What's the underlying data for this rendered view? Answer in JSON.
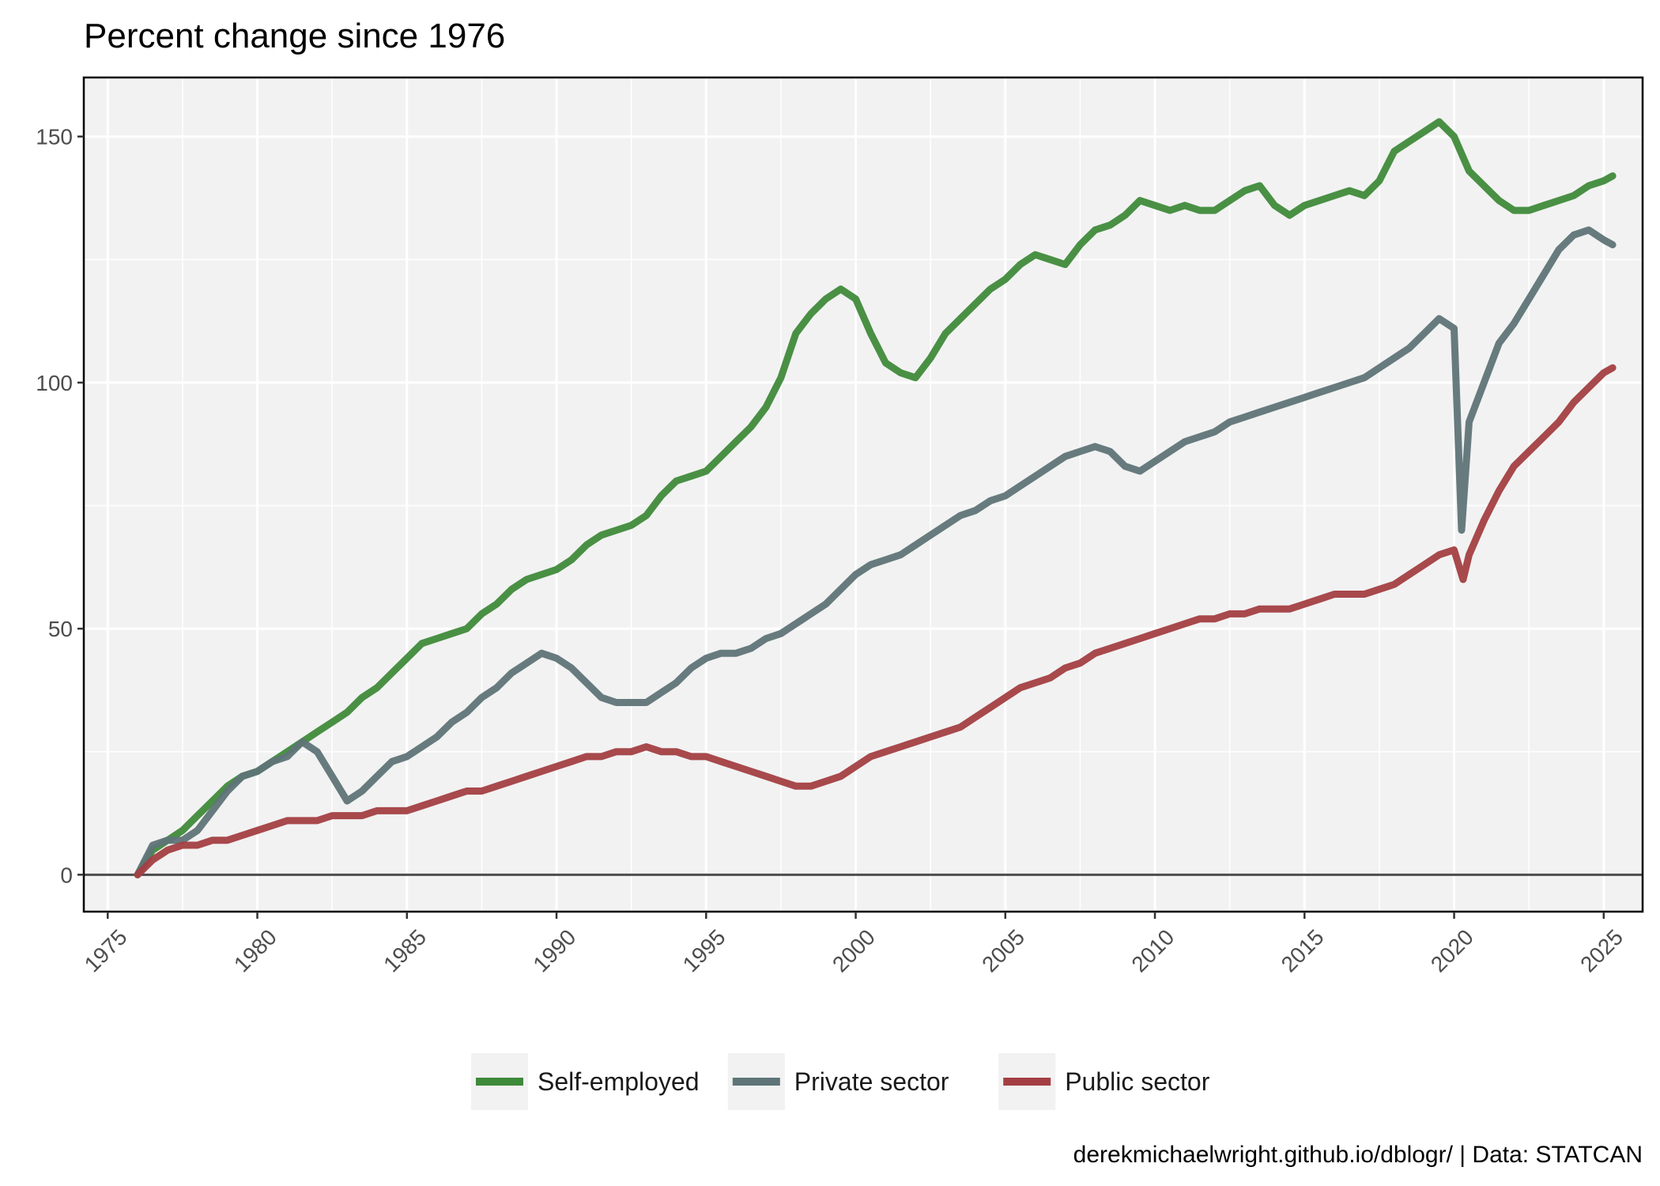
{
  "chart_data": {
    "type": "line",
    "title": "Percent change since 1976",
    "caption": "derekmichaelwright.github.io/dblogr/ | Data: STATCAN",
    "xlabel": "",
    "ylabel": "",
    "xlim": [
      1974.2,
      2026.3
    ],
    "ylim": [
      -7.5,
      162
    ],
    "x_ticks": [
      1975,
      1980,
      1985,
      1990,
      1995,
      2000,
      2005,
      2010,
      2015,
      2020,
      2025
    ],
    "y_ticks": [
      0,
      50,
      100,
      150
    ],
    "zero_line": 0,
    "grid": true,
    "legend_position": "bottom",
    "series": [
      {
        "name": "Self-employed",
        "color": "#3f8a3a",
        "points": [
          [
            1976.0,
            0
          ],
          [
            1976.5,
            5
          ],
          [
            1977.0,
            7
          ],
          [
            1977.5,
            9
          ],
          [
            1978.0,
            12
          ],
          [
            1978.5,
            15
          ],
          [
            1979.0,
            18
          ],
          [
            1979.5,
            20
          ],
          [
            1980.0,
            21
          ],
          [
            1980.5,
            23
          ],
          [
            1981.0,
            25
          ],
          [
            1981.5,
            27
          ],
          [
            1982.0,
            29
          ],
          [
            1982.5,
            31
          ],
          [
            1983.0,
            33
          ],
          [
            1983.5,
            36
          ],
          [
            1984.0,
            38
          ],
          [
            1984.5,
            41
          ],
          [
            1985.0,
            44
          ],
          [
            1985.5,
            47
          ],
          [
            1986.0,
            48
          ],
          [
            1986.5,
            49
          ],
          [
            1987.0,
            50
          ],
          [
            1987.5,
            53
          ],
          [
            1988.0,
            55
          ],
          [
            1988.5,
            58
          ],
          [
            1989.0,
            60
          ],
          [
            1989.5,
            61
          ],
          [
            1990.0,
            62
          ],
          [
            1990.5,
            64
          ],
          [
            1991.0,
            67
          ],
          [
            1991.5,
            69
          ],
          [
            1992.0,
            70
          ],
          [
            1992.5,
            71
          ],
          [
            1993.0,
            73
          ],
          [
            1993.5,
            77
          ],
          [
            1994.0,
            80
          ],
          [
            1994.5,
            81
          ],
          [
            1995.0,
            82
          ],
          [
            1995.5,
            85
          ],
          [
            1996.0,
            88
          ],
          [
            1996.5,
            91
          ],
          [
            1997.0,
            95
          ],
          [
            1997.5,
            101
          ],
          [
            1998.0,
            110
          ],
          [
            1998.5,
            114
          ],
          [
            1999.0,
            117
          ],
          [
            1999.5,
            119
          ],
          [
            2000.0,
            117
          ],
          [
            2000.5,
            110
          ],
          [
            2001.0,
            104
          ],
          [
            2001.5,
            102
          ],
          [
            2002.0,
            101
          ],
          [
            2002.5,
            105
          ],
          [
            2003.0,
            110
          ],
          [
            2003.5,
            113
          ],
          [
            2004.0,
            116
          ],
          [
            2004.5,
            119
          ],
          [
            2005.0,
            121
          ],
          [
            2005.5,
            124
          ],
          [
            2006.0,
            126
          ],
          [
            2006.5,
            125
          ],
          [
            2007.0,
            124
          ],
          [
            2007.5,
            128
          ],
          [
            2008.0,
            131
          ],
          [
            2008.5,
            132
          ],
          [
            2009.0,
            134
          ],
          [
            2009.5,
            137
          ],
          [
            2010.0,
            136
          ],
          [
            2010.5,
            135
          ],
          [
            2011.0,
            136
          ],
          [
            2011.5,
            135
          ],
          [
            2012.0,
            135
          ],
          [
            2012.5,
            137
          ],
          [
            2013.0,
            139
          ],
          [
            2013.5,
            140
          ],
          [
            2014.0,
            136
          ],
          [
            2014.5,
            134
          ],
          [
            2015.0,
            136
          ],
          [
            2015.5,
            137
          ],
          [
            2016.0,
            138
          ],
          [
            2016.5,
            139
          ],
          [
            2017.0,
            138
          ],
          [
            2017.5,
            141
          ],
          [
            2018.0,
            147
          ],
          [
            2018.5,
            149
          ],
          [
            2019.0,
            151
          ],
          [
            2019.5,
            153
          ],
          [
            2020.0,
            150
          ],
          [
            2020.5,
            143
          ],
          [
            2021.0,
            140
          ],
          [
            2021.5,
            137
          ],
          [
            2022.0,
            135
          ],
          [
            2022.5,
            135
          ],
          [
            2023.0,
            136
          ],
          [
            2023.5,
            137
          ],
          [
            2024.0,
            138
          ],
          [
            2024.5,
            140
          ],
          [
            2025.0,
            141
          ],
          [
            2025.3,
            142
          ]
        ]
      },
      {
        "name": "Private sector",
        "color": "#5f7477",
        "points": [
          [
            1976.0,
            0
          ],
          [
            1976.5,
            6
          ],
          [
            1977.0,
            7
          ],
          [
            1977.5,
            7
          ],
          [
            1978.0,
            9
          ],
          [
            1978.5,
            13
          ],
          [
            1979.0,
            17
          ],
          [
            1979.5,
            20
          ],
          [
            1980.0,
            21
          ],
          [
            1980.5,
            23
          ],
          [
            1981.0,
            24
          ],
          [
            1981.5,
            27
          ],
          [
            1982.0,
            25
          ],
          [
            1982.5,
            20
          ],
          [
            1983.0,
            15
          ],
          [
            1983.5,
            17
          ],
          [
            1984.0,
            20
          ],
          [
            1984.5,
            23
          ],
          [
            1985.0,
            24
          ],
          [
            1985.5,
            26
          ],
          [
            1986.0,
            28
          ],
          [
            1986.5,
            31
          ],
          [
            1987.0,
            33
          ],
          [
            1987.5,
            36
          ],
          [
            1988.0,
            38
          ],
          [
            1988.5,
            41
          ],
          [
            1989.0,
            43
          ],
          [
            1989.5,
            45
          ],
          [
            1990.0,
            44
          ],
          [
            1990.5,
            42
          ],
          [
            1991.0,
            39
          ],
          [
            1991.5,
            36
          ],
          [
            1992.0,
            35
          ],
          [
            1992.5,
            35
          ],
          [
            1993.0,
            35
          ],
          [
            1993.5,
            37
          ],
          [
            1994.0,
            39
          ],
          [
            1994.5,
            42
          ],
          [
            1995.0,
            44
          ],
          [
            1995.5,
            45
          ],
          [
            1996.0,
            45
          ],
          [
            1996.5,
            46
          ],
          [
            1997.0,
            48
          ],
          [
            1997.5,
            49
          ],
          [
            1998.0,
            51
          ],
          [
            1998.5,
            53
          ],
          [
            1999.0,
            55
          ],
          [
            1999.5,
            58
          ],
          [
            2000.0,
            61
          ],
          [
            2000.5,
            63
          ],
          [
            2001.0,
            64
          ],
          [
            2001.5,
            65
          ],
          [
            2002.0,
            67
          ],
          [
            2002.5,
            69
          ],
          [
            2003.0,
            71
          ],
          [
            2003.5,
            73
          ],
          [
            2004.0,
            74
          ],
          [
            2004.5,
            76
          ],
          [
            2005.0,
            77
          ],
          [
            2005.5,
            79
          ],
          [
            2006.0,
            81
          ],
          [
            2006.5,
            83
          ],
          [
            2007.0,
            85
          ],
          [
            2007.5,
            86
          ],
          [
            2008.0,
            87
          ],
          [
            2008.5,
            86
          ],
          [
            2009.0,
            83
          ],
          [
            2009.5,
            82
          ],
          [
            2010.0,
            84
          ],
          [
            2010.5,
            86
          ],
          [
            2011.0,
            88
          ],
          [
            2011.5,
            89
          ],
          [
            2012.0,
            90
          ],
          [
            2012.5,
            92
          ],
          [
            2013.0,
            93
          ],
          [
            2013.5,
            94
          ],
          [
            2014.0,
            95
          ],
          [
            2014.5,
            96
          ],
          [
            2015.0,
            97
          ],
          [
            2015.5,
            98
          ],
          [
            2016.0,
            99
          ],
          [
            2016.5,
            100
          ],
          [
            2017.0,
            101
          ],
          [
            2017.5,
            103
          ],
          [
            2018.0,
            105
          ],
          [
            2018.5,
            107
          ],
          [
            2019.0,
            110
          ],
          [
            2019.5,
            113
          ],
          [
            2020.0,
            111
          ],
          [
            2020.25,
            70
          ],
          [
            2020.5,
            92
          ],
          [
            2021.0,
            100
          ],
          [
            2021.5,
            108
          ],
          [
            2022.0,
            112
          ],
          [
            2022.5,
            117
          ],
          [
            2023.0,
            122
          ],
          [
            2023.5,
            127
          ],
          [
            2024.0,
            130
          ],
          [
            2024.5,
            131
          ],
          [
            2025.0,
            129
          ],
          [
            2025.3,
            128
          ]
        ]
      },
      {
        "name": "Public sector",
        "color": "#a33f42",
        "points": [
          [
            1976.0,
            0
          ],
          [
            1976.5,
            3
          ],
          [
            1977.0,
            5
          ],
          [
            1977.5,
            6
          ],
          [
            1978.0,
            6
          ],
          [
            1978.5,
            7
          ],
          [
            1979.0,
            7
          ],
          [
            1979.5,
            8
          ],
          [
            1980.0,
            9
          ],
          [
            1980.5,
            10
          ],
          [
            1981.0,
            11
          ],
          [
            1981.5,
            11
          ],
          [
            1982.0,
            11
          ],
          [
            1982.5,
            12
          ],
          [
            1983.0,
            12
          ],
          [
            1983.5,
            12
          ],
          [
            1984.0,
            13
          ],
          [
            1984.5,
            13
          ],
          [
            1985.0,
            13
          ],
          [
            1985.5,
            14
          ],
          [
            1986.0,
            15
          ],
          [
            1986.5,
            16
          ],
          [
            1987.0,
            17
          ],
          [
            1987.5,
            17
          ],
          [
            1988.0,
            18
          ],
          [
            1988.5,
            19
          ],
          [
            1989.0,
            20
          ],
          [
            1989.5,
            21
          ],
          [
            1990.0,
            22
          ],
          [
            1990.5,
            23
          ],
          [
            1991.0,
            24
          ],
          [
            1991.5,
            24
          ],
          [
            1992.0,
            25
          ],
          [
            1992.5,
            25
          ],
          [
            1993.0,
            26
          ],
          [
            1993.5,
            25
          ],
          [
            1994.0,
            25
          ],
          [
            1994.5,
            24
          ],
          [
            1995.0,
            24
          ],
          [
            1995.5,
            23
          ],
          [
            1996.0,
            22
          ],
          [
            1996.5,
            21
          ],
          [
            1997.0,
            20
          ],
          [
            1997.5,
            19
          ],
          [
            1998.0,
            18
          ],
          [
            1998.5,
            18
          ],
          [
            1999.0,
            19
          ],
          [
            1999.5,
            20
          ],
          [
            2000.0,
            22
          ],
          [
            2000.5,
            24
          ],
          [
            2001.0,
            25
          ],
          [
            2001.5,
            26
          ],
          [
            2002.0,
            27
          ],
          [
            2002.5,
            28
          ],
          [
            2003.0,
            29
          ],
          [
            2003.5,
            30
          ],
          [
            2004.0,
            32
          ],
          [
            2004.5,
            34
          ],
          [
            2005.0,
            36
          ],
          [
            2005.5,
            38
          ],
          [
            2006.0,
            39
          ],
          [
            2006.5,
            40
          ],
          [
            2007.0,
            42
          ],
          [
            2007.5,
            43
          ],
          [
            2008.0,
            45
          ],
          [
            2008.5,
            46
          ],
          [
            2009.0,
            47
          ],
          [
            2009.5,
            48
          ],
          [
            2010.0,
            49
          ],
          [
            2010.5,
            50
          ],
          [
            2011.0,
            51
          ],
          [
            2011.5,
            52
          ],
          [
            2012.0,
            52
          ],
          [
            2012.5,
            53
          ],
          [
            2013.0,
            53
          ],
          [
            2013.5,
            54
          ],
          [
            2014.0,
            54
          ],
          [
            2014.5,
            54
          ],
          [
            2015.0,
            55
          ],
          [
            2015.5,
            56
          ],
          [
            2016.0,
            57
          ],
          [
            2016.5,
            57
          ],
          [
            2017.0,
            57
          ],
          [
            2017.5,
            58
          ],
          [
            2018.0,
            59
          ],
          [
            2018.5,
            61
          ],
          [
            2019.0,
            63
          ],
          [
            2019.5,
            65
          ],
          [
            2020.0,
            66
          ],
          [
            2020.3,
            60
          ],
          [
            2020.5,
            65
          ],
          [
            2021.0,
            72
          ],
          [
            2021.5,
            78
          ],
          [
            2022.0,
            83
          ],
          [
            2022.5,
            86
          ],
          [
            2023.0,
            89
          ],
          [
            2023.5,
            92
          ],
          [
            2024.0,
            96
          ],
          [
            2024.5,
            99
          ],
          [
            2025.0,
            102
          ],
          [
            2025.3,
            103
          ]
        ]
      }
    ]
  }
}
